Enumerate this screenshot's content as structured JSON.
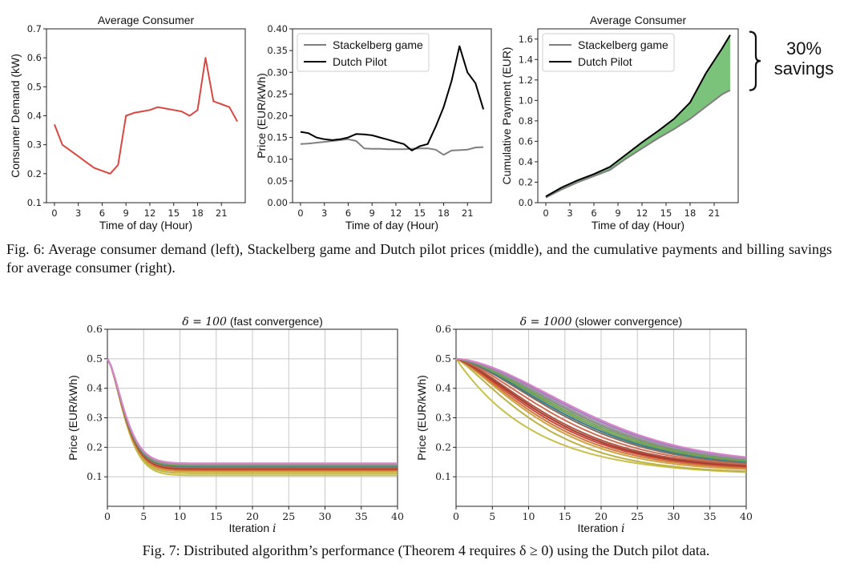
{
  "figure6": {
    "caption": "Fig. 6: Average consumer demand (left), Stackelberg game and Dutch pilot prices (middle), and the cumulative payments and billing savings for average consumer (right).",
    "annotation": {
      "pct": "30%",
      "word": "savings"
    }
  },
  "figure7": {
    "caption": "Fig. 7: Distributed algorithm’s performance (Theorem 4 requires δ ≥ 0) using the Dutch pilot data."
  },
  "chart_data": [
    {
      "id": "demand",
      "type": "line",
      "title": "Average Consumer",
      "xlabel": "Time of day (Hour)",
      "ylabel": "Consumer Demand (kW)",
      "xlim": [
        -1,
        24
      ],
      "ylim": [
        0.1,
        0.7
      ],
      "xticks": [
        0,
        3,
        6,
        9,
        12,
        15,
        18,
        21
      ],
      "xtick_labels": [
        "0",
        "3",
        "6",
        "9",
        "12",
        "15",
        "18",
        "21"
      ],
      "yticks": [
        0.1,
        0.2,
        0.3,
        0.4,
        0.5,
        0.6,
        0.7
      ],
      "ytick_labels": [
        "0.1",
        "0.2",
        "0.3",
        "0.4",
        "0.5",
        "0.6",
        "0.7"
      ],
      "series": [
        {
          "name": "Consumer demand",
          "color": "#d9473f",
          "width": 2,
          "x": [
            0,
            1,
            2,
            3,
            4,
            5,
            6,
            7,
            8,
            9,
            10,
            11,
            12,
            13,
            14,
            15,
            16,
            17,
            18,
            19,
            20,
            21,
            22,
            23
          ],
          "y": [
            0.37,
            0.3,
            0.28,
            0.26,
            0.24,
            0.22,
            0.21,
            0.2,
            0.23,
            0.4,
            0.41,
            0.415,
            0.42,
            0.43,
            0.425,
            0.42,
            0.415,
            0.4,
            0.42,
            0.6,
            0.45,
            0.44,
            0.43,
            0.38
          ]
        }
      ]
    },
    {
      "id": "price",
      "type": "line",
      "title": "",
      "xlabel": "Time of day (Hour)",
      "ylabel": "Price (EUR/kWh)",
      "xlim": [
        -1,
        24
      ],
      "ylim": [
        0,
        0.4
      ],
      "xticks": [
        0,
        3,
        6,
        9,
        12,
        15,
        18,
        21
      ],
      "xtick_labels": [
        "0",
        "3",
        "6",
        "9",
        "12",
        "15",
        "18",
        "21"
      ],
      "yticks": [
        0,
        0.05,
        0.1,
        0.15,
        0.2,
        0.25,
        0.3,
        0.35,
        0.4
      ],
      "ytick_labels": [
        "0.00",
        "0.05",
        "0.10",
        "0.15",
        "0.20",
        "0.25",
        "0.30",
        "0.35",
        "0.40"
      ],
      "legend": {
        "position": "top-left"
      },
      "series": [
        {
          "name": "Stackelberg game",
          "color": "#7f7f7f",
          "width": 2,
          "x": [
            0,
            1,
            2,
            3,
            4,
            5,
            6,
            7,
            8,
            9,
            10,
            11,
            12,
            13,
            14,
            15,
            16,
            17,
            18,
            19,
            20,
            21,
            22,
            23
          ],
          "y": [
            0.135,
            0.136,
            0.138,
            0.14,
            0.142,
            0.144,
            0.146,
            0.142,
            0.125,
            0.124,
            0.124,
            0.123,
            0.123,
            0.123,
            0.124,
            0.125,
            0.125,
            0.122,
            0.11,
            0.12,
            0.121,
            0.122,
            0.127,
            0.128
          ]
        },
        {
          "name": "Dutch Pilot",
          "color": "#000000",
          "width": 2,
          "x": [
            0,
            1,
            2,
            3,
            4,
            5,
            6,
            7,
            8,
            9,
            10,
            11,
            12,
            13,
            14,
            15,
            16,
            17,
            18,
            19,
            20,
            21,
            22,
            23
          ],
          "y": [
            0.163,
            0.16,
            0.15,
            0.146,
            0.144,
            0.146,
            0.15,
            0.158,
            0.157,
            0.155,
            0.15,
            0.145,
            0.14,
            0.135,
            0.12,
            0.13,
            0.135,
            0.175,
            0.22,
            0.28,
            0.36,
            0.3,
            0.275,
            0.215
          ]
        }
      ]
    },
    {
      "id": "cumulative",
      "type": "area",
      "title": "Average Consumer",
      "xlabel": "Time of day (Hour)",
      "ylabel": "Cumulative Payment (EUR)",
      "xlim": [
        -1,
        24
      ],
      "ylim": [
        0,
        1.7
      ],
      "xticks": [
        0,
        3,
        6,
        9,
        12,
        15,
        18,
        21
      ],
      "xtick_labels": [
        "0",
        "3",
        "6",
        "9",
        "12",
        "15",
        "18",
        "21"
      ],
      "yticks": [
        0,
        0.2,
        0.4,
        0.6,
        0.8,
        1.0,
        1.2,
        1.4,
        1.6
      ],
      "ytick_labels": [
        "0.0",
        "0.2",
        "0.4",
        "0.6",
        "0.8",
        "1.0",
        "1.2",
        "1.4",
        "1.6"
      ],
      "legend": {
        "position": "top-left"
      },
      "fill_between": {
        "color": "#6dbb6d"
      },
      "series": [
        {
          "name": "Stackelberg game",
          "color": "#7f7f7f",
          "width": 2,
          "x": [
            0,
            2,
            4,
            6,
            8,
            10,
            12,
            14,
            16,
            18,
            20,
            22,
            23
          ],
          "y": [
            0.05,
            0.13,
            0.2,
            0.26,
            0.32,
            0.43,
            0.53,
            0.63,
            0.72,
            0.82,
            0.94,
            1.06,
            1.1
          ]
        },
        {
          "name": "Dutch Pilot",
          "color": "#000000",
          "width": 2,
          "x": [
            0,
            2,
            4,
            6,
            8,
            10,
            12,
            14,
            16,
            18,
            20,
            22,
            23
          ],
          "y": [
            0.06,
            0.15,
            0.22,
            0.28,
            0.35,
            0.47,
            0.59,
            0.7,
            0.82,
            0.98,
            1.27,
            1.51,
            1.64
          ]
        }
      ]
    },
    {
      "id": "conv100",
      "type": "line",
      "title": "δ = 100 (fast convergence)",
      "xlabel": "Iteration i",
      "ylabel": "Price (EUR/kWh)",
      "xlim": [
        0,
        40
      ],
      "ylim": [
        0,
        0.6
      ],
      "xticks": [
        0,
        5,
        10,
        15,
        20,
        25,
        30,
        35,
        40
      ],
      "xtick_labels": [
        "0",
        "5",
        "10",
        "15",
        "20",
        "25",
        "30",
        "35",
        "40"
      ],
      "yticks": [
        0.1,
        0.2,
        0.3,
        0.4,
        0.5,
        0.6
      ],
      "ytick_labels": [
        "0.1",
        "0.2",
        "0.3",
        "0.4",
        "0.5",
        "0.6"
      ],
      "decay": {
        "start": 0.5,
        "tau": 3.0,
        "p": 1.5
      },
      "series": [
        {
          "color": "#c8c04a",
          "final": 0.105
        },
        {
          "color": "#bdb245",
          "final": 0.112
        },
        {
          "color": "#d1a340",
          "final": 0.118
        },
        {
          "color": "#d0793a",
          "final": 0.122
        },
        {
          "color": "#c9473a",
          "final": 0.126
        },
        {
          "color": "#a43a2f",
          "final": 0.128
        },
        {
          "color": "#b05540",
          "final": 0.13
        },
        {
          "color": "#cf6e55",
          "final": 0.132
        },
        {
          "color": "#8c6d5d",
          "final": 0.134
        },
        {
          "color": "#2f7f8f",
          "final": 0.136
        },
        {
          "color": "#7b9a5a",
          "final": 0.138
        },
        {
          "color": "#6aa84f",
          "final": 0.14
        },
        {
          "color": "#8a8a8a",
          "final": 0.142
        },
        {
          "color": "#9b9b9b",
          "final": 0.143
        },
        {
          "color": "#a57bc2",
          "final": 0.145
        },
        {
          "color": "#d986c8",
          "final": 0.146
        }
      ]
    },
    {
      "id": "conv1000",
      "type": "line",
      "title": "δ = 1000 (slower convergence)",
      "xlabel": "Iteration i",
      "ylabel": "Price (EUR/kWh)",
      "xlim": [
        0,
        40
      ],
      "ylim": [
        0,
        0.6
      ],
      "xticks": [
        0,
        5,
        10,
        15,
        20,
        25,
        30,
        35,
        40
      ],
      "xtick_labels": [
        "0",
        "5",
        "10",
        "15",
        "20",
        "25",
        "30",
        "35",
        "40"
      ],
      "yticks": [
        0.1,
        0.2,
        0.3,
        0.4,
        0.5,
        0.6
      ],
      "ytick_labels": [
        "0.1",
        "0.2",
        "0.3",
        "0.4",
        "0.5",
        "0.6"
      ],
      "decay": {
        "start": 0.5
      },
      "series": [
        {
          "color": "#c8c04a",
          "final": 0.105,
          "tau": 11,
          "p": 1.0
        },
        {
          "color": "#bdb245",
          "final": 0.112,
          "tau": 13,
          "p": 1.25
        },
        {
          "color": "#d1a340",
          "final": 0.118,
          "tau": 14,
          "p": 1.3
        },
        {
          "color": "#d0793a",
          "final": 0.122,
          "tau": 14.5,
          "p": 1.32
        },
        {
          "color": "#c9473a",
          "final": 0.126,
          "tau": 15,
          "p": 1.35
        },
        {
          "color": "#a43a2f",
          "final": 0.128,
          "tau": 15.5,
          "p": 1.38
        },
        {
          "color": "#b05540",
          "final": 0.13,
          "tau": 16,
          "p": 1.4
        },
        {
          "color": "#cf6e55",
          "final": 0.132,
          "tau": 17,
          "p": 1.45
        },
        {
          "color": "#8c6d5d",
          "final": 0.134,
          "tau": 18,
          "p": 1.5
        },
        {
          "color": "#2f7f8f",
          "final": 0.136,
          "tau": 18.5,
          "p": 1.52
        },
        {
          "color": "#7b9a5a",
          "final": 0.138,
          "tau": 19,
          "p": 1.55
        },
        {
          "color": "#6aa84f",
          "final": 0.14,
          "tau": 19.5,
          "p": 1.57
        },
        {
          "color": "#8a8a8a",
          "final": 0.142,
          "tau": 20,
          "p": 1.6
        },
        {
          "color": "#9b9b9b",
          "final": 0.143,
          "tau": 20.5,
          "p": 1.62
        },
        {
          "color": "#a57bc2",
          "final": 0.145,
          "tau": 21,
          "p": 1.65
        },
        {
          "color": "#d986c8",
          "final": 0.146,
          "tau": 21.5,
          "p": 1.68
        }
      ]
    }
  ]
}
